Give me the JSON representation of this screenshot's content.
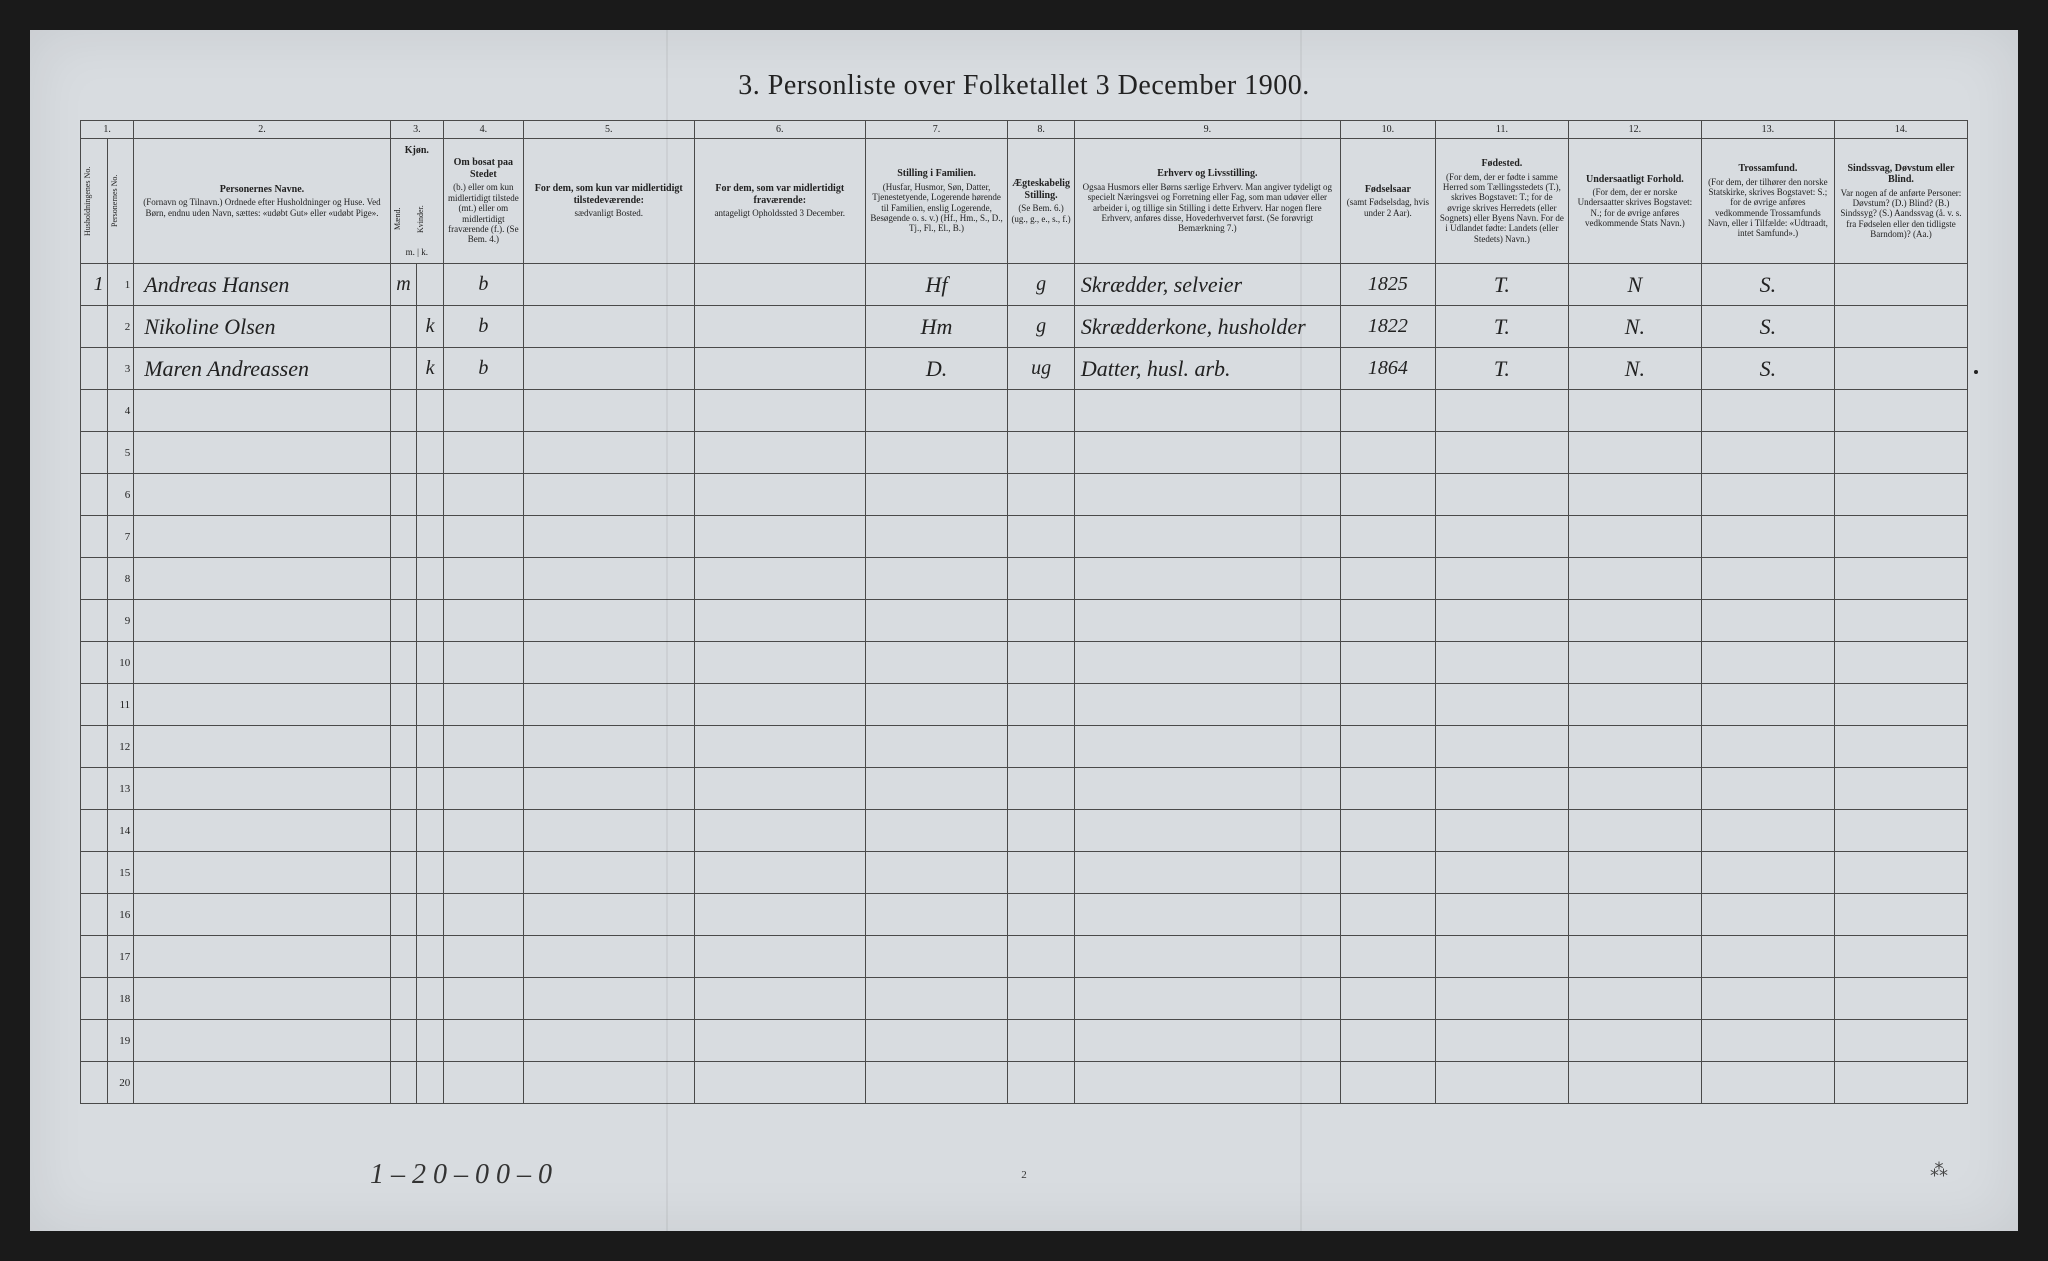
{
  "title": "3. Personliste over Folketallet 3 December 1900.",
  "columns": {
    "c1": "1.",
    "c2": "2.",
    "c3": "3.",
    "c4": "4.",
    "c5": "5.",
    "c6": "6.",
    "c7": "7.",
    "c8": "8.",
    "c9": "9.",
    "c10": "10.",
    "c11": "11.",
    "c12": "12.",
    "c13": "13.",
    "c14": "14."
  },
  "headers": {
    "h1a": "Husholdningenes No.",
    "h1b": "Personernes No.",
    "h2_title": "Personernes Navne.",
    "h2_body": "(Fornavn og Tilnavn.)\nOrdnede efter Husholdninger og Huse.\nVed Børn, endnu uden Navn, sættes: «udøbt Gut» eller «udøbt Pige».",
    "h3_title": "Kjøn.",
    "h3a": "Mænd.",
    "h3b": "Kvinder.",
    "h3_sub": "m. | k.",
    "h4_title": "Om bosat paa Stedet",
    "h4_body": "(b.) eller om kun midlertidigt tilstede (mt.) eller om midlertidigt fraværende (f.).\n(Se Bem. 4.)",
    "h5_title": "For dem, som kun var midlertidigt tilstedeværende:",
    "h5_body": "sædvanligt Bosted.",
    "h6_title": "For dem, som var midlertidigt fraværende:",
    "h6_body": "antageligt Opholdssted 3 December.",
    "h7_title": "Stilling i Familien.",
    "h7_body": "(Husfar, Husmor, Søn, Datter, Tjenestetyende, Logerende hørende til Familien, enslig Logerende, Besøgende o. s. v.)\n(Hf., Hm., S., D., Tj., Fl., El., B.)",
    "h8_title": "Ægteskabelig Stilling.",
    "h8_body": "(Se Bem. 6.)\n(ug., g., e., s., f.)",
    "h9_title": "Erhverv og Livsstilling.",
    "h9_body": "Ogsaa Husmors eller Børns særlige Erhverv. Man angiver tydeligt og specielt Næringsvei og Forretning eller Fag, som man udøver eller arbeider i, og tillige sin Stilling i dette Erhverv. Har nogen flere Erhverv, anføres disse, Hovederhvervet først.\n(Se forøvrigt Bemærkning 7.)",
    "h10_title": "Fødselsaar",
    "h10_body": "(samt Fødselsdag, hvis under 2 Aar).",
    "h11_title": "Fødested.",
    "h11_body": "(For dem, der er fødte i samme Herred som Tællingsstedets (T.), skrives Bogstavet: T.; for de øvrige skrives Herredets (eller Sognets) eller Byens Navn. For de i Udlandet fødte: Landets (eller Stedets) Navn.)",
    "h12_title": "Undersaatligt Forhold.",
    "h12_body": "(For dem, der er norske Undersaatter skrives Bogstavet: N.; for de øvrige anføres vedkommende Stats Navn.)",
    "h13_title": "Trossamfund.",
    "h13_body": "(For dem, der tilhører den norske Statskirke, skrives Bogstavet: S.; for de øvrige anføres vedkommende Trossamfunds Navn, eller i Tilfælde: «Udtraadt, intet Samfund».)",
    "h14_title": "Sindssvag, Døvstum eller Blind.",
    "h14_body": "Var nogen af de anførte Personer:\nDøvstum? (D.)\nBlind? (B.)\nSindssyg? (S.)\nAandssvag (å. v. s. fra Fødselen eller den tidligste Barndom)? (Aa.)"
  },
  "rows": [
    {
      "hh": "1",
      "pn": "1",
      "name": "Andreas Hansen",
      "sex_m": "m",
      "sex_k": "",
      "res": "b",
      "c5": "",
      "c6": "",
      "fam": "Hf",
      "mar": "g",
      "occ": "Skrædder, selveier",
      "year": "1825",
      "birthplace": "T.",
      "nat": "N",
      "rel": "S.",
      "c14": ""
    },
    {
      "hh": "",
      "pn": "2",
      "name": "Nikoline Olsen",
      "sex_m": "",
      "sex_k": "k",
      "res": "b",
      "c5": "",
      "c6": "",
      "fam": "Hm",
      "mar": "g",
      "occ": "Skrædderkone, husholder",
      "year": "1822",
      "birthplace": "T.",
      "nat": "N.",
      "rel": "S.",
      "c14": ""
    },
    {
      "hh": "",
      "pn": "3",
      "name": "Maren Andreassen",
      "sex_m": "",
      "sex_k": "k",
      "res": "b",
      "c5": "",
      "c6": "",
      "fam": "D.",
      "mar": "ug",
      "occ": "Datter, husl. arb.",
      "year": "1864",
      "birthplace": "T.",
      "nat": "N.",
      "rel": "S.",
      "c14": ""
    }
  ],
  "blank_rows": [
    "4",
    "5",
    "6",
    "7",
    "8",
    "9",
    "10",
    "11",
    "12",
    "13",
    "14",
    "15",
    "16",
    "17",
    "18",
    "19",
    "20"
  ],
  "footer": "1 – 2     0 – 0     0 – 0",
  "page_number": "2",
  "colors": {
    "paper": "#d8dce0",
    "ink": "#222222",
    "border": "#4a4a4a",
    "frame": "#1a1a1a"
  },
  "col_widths_pct": [
    1.4,
    1.4,
    13.5,
    1.4,
    1.4,
    4.2,
    9,
    9,
    7.5,
    3.5,
    14,
    5,
    7,
    7,
    7,
    7
  ]
}
